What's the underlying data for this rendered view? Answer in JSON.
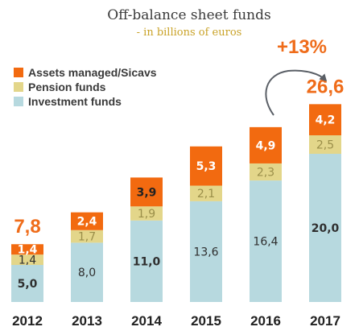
{
  "title": "Off-balance sheet funds",
  "subtitle": "- in billions of euros",
  "colors": {
    "assets": "#f26a10",
    "pension": "#e3d68a",
    "investment": "#b7d9df",
    "accent": "#ef6c1a"
  },
  "legend": [
    {
      "label": "Assets managed/Sicavs",
      "color": "#f26a10"
    },
    {
      "label": "Pension funds",
      "color": "#e3d68a"
    },
    {
      "label": "Investment funds",
      "color": "#b7d9df"
    }
  ],
  "growth_annotation": "+13%",
  "chart_data": {
    "type": "bar",
    "stacked": true,
    "title": "Off-balance sheet funds",
    "subtitle": "- in billions of euros",
    "categories": [
      "2012",
      "2013",
      "2014",
      "2015",
      "2016",
      "2017"
    ],
    "series": [
      {
        "name": "Investment funds",
        "values": [
          5.0,
          8.0,
          11.0,
          13.6,
          16.4,
          20.0
        ],
        "labels": [
          "5,0",
          "8,0",
          "11,0",
          "13,6",
          "16,4",
          "20,0"
        ]
      },
      {
        "name": "Pension funds",
        "values": [
          1.4,
          1.7,
          1.9,
          2.1,
          2.3,
          2.5
        ],
        "labels": [
          "1,4",
          "1,7",
          "1,9",
          "2,1",
          "2,3",
          "2,5"
        ]
      },
      {
        "name": "Assets managed/Sicavs",
        "values": [
          1.4,
          2.4,
          3.9,
          5.3,
          4.9,
          4.2
        ],
        "labels": [
          "1,4",
          "2,4",
          "3,9",
          "5,3",
          "4,9",
          "4,2"
        ]
      }
    ],
    "totals": {
      "2012": "7,8",
      "2017": "26,6"
    },
    "annotation": {
      "text": "+13%",
      "from": "2016",
      "to": "2017"
    },
    "legend_position": "top-left",
    "grid": false
  }
}
